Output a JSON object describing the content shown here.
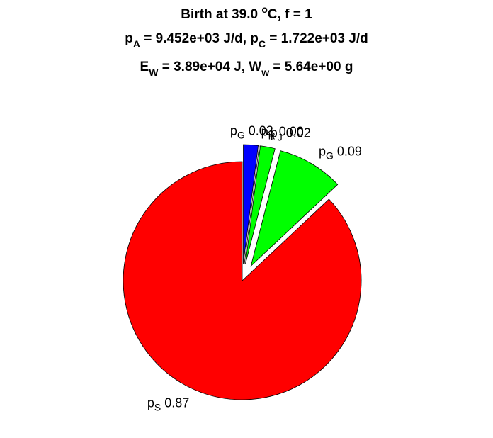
{
  "chart_data": {
    "type": "pie",
    "title": [
      [
        {
          "text": "Birth at 39.0 "
        },
        {
          "sup": "o"
        },
        {
          "text": "C, f = 1"
        }
      ],
      [
        {
          "text": "p"
        },
        {
          "sub": "A"
        },
        {
          "text": " = 9.452e+03 J/d, p"
        },
        {
          "sub": "C"
        },
        {
          "text": " = 1.722e+03 J/d"
        }
      ],
      [
        {
          "text": "E"
        },
        {
          "sub": "W"
        },
        {
          "text": " = 3.89e+04 J, W"
        },
        {
          "sub": "w"
        },
        {
          "text": " = 5.64e+00 g"
        }
      ]
    ],
    "labels": [
      {
        "text": "p",
        "sub": "S"
      },
      {
        "text": "p",
        "sub": "G"
      },
      {
        "text": "p",
        "sub": "J"
      },
      {
        "text": "p",
        "sub": "R"
      },
      {
        "text": "p",
        "sub": "G"
      }
    ],
    "values": [
      0.87,
      0.09,
      0.02,
      0.0,
      0.02
    ],
    "value_labels": [
      "0.87",
      "0.09",
      "0.02",
      "0.00",
      "0.02"
    ],
    "colors": [
      "#ff0000",
      "#00ff00",
      "#00ff00",
      "#000000",
      "#0000ff"
    ],
    "explode": [
      false,
      true,
      true,
      true,
      true
    ]
  }
}
